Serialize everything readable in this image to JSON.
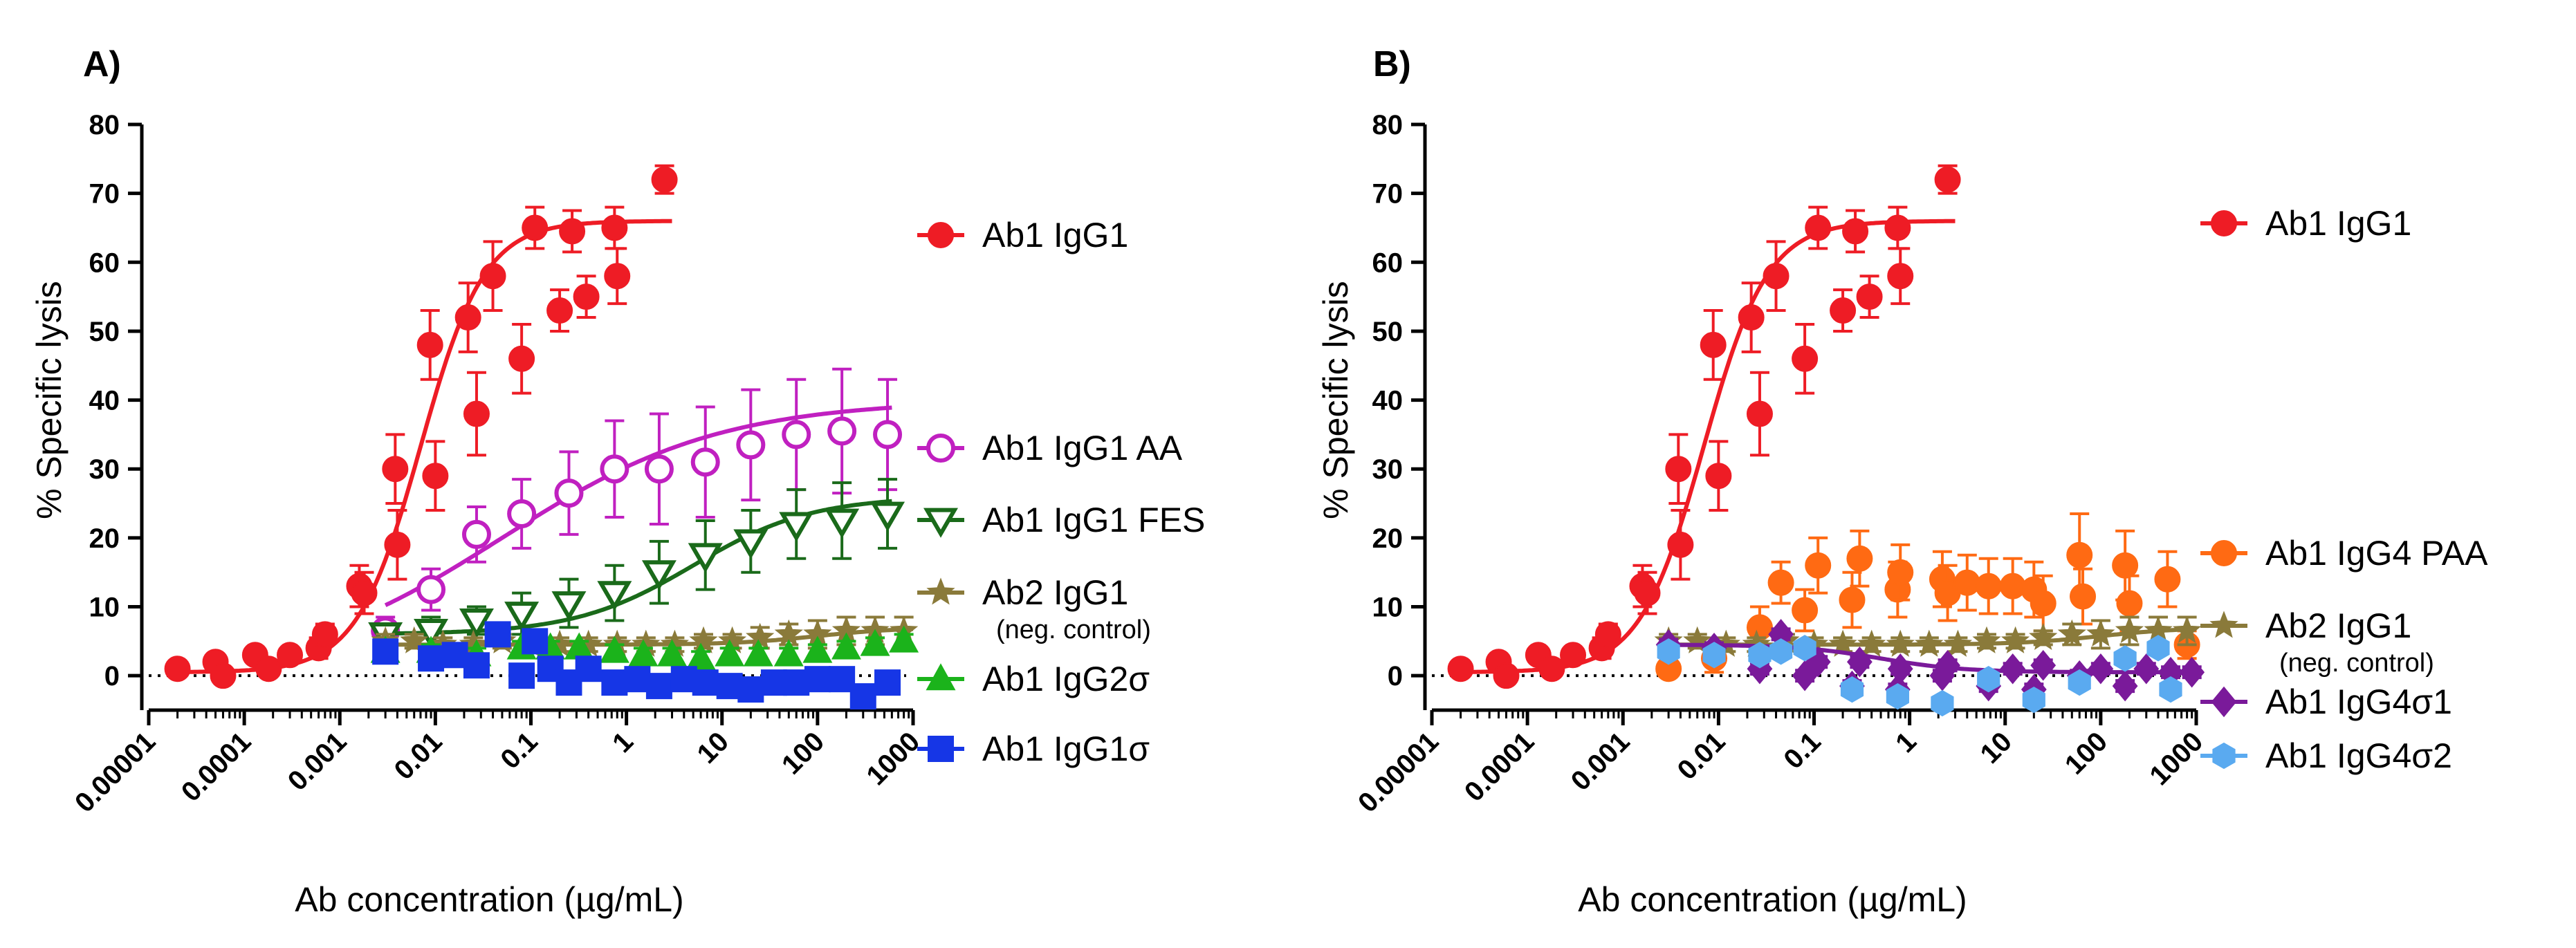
{
  "chart_data": [
    {
      "type": "scatter",
      "panel_label": "A)",
      "xlabel": "Ab concentration (µg/mL)",
      "ylabel": "% Specific lysis",
      "xscale": "log",
      "xlim": [
        1e-05,
        1000
      ],
      "ylim": [
        -5,
        80
      ],
      "x_ticks": [
        "0.00001",
        "0.0001",
        "0.001",
        "0.01",
        "0.1",
        "1",
        "10",
        "100",
        "1000"
      ],
      "y_ticks": [
        "0",
        "10",
        "20",
        "30",
        "40",
        "50",
        "60",
        "70",
        "80"
      ],
      "reference_line": {
        "y": 0,
        "style": "dotted"
      },
      "series": [
        {
          "name": "Ab1 IgG1",
          "sub": "",
          "color": "#ee1c25",
          "marker": "circle",
          "x": [
            2e-05,
            5e-05,
            6e-05,
            0.00013,
            0.00018,
            0.0003,
            0.0006,
            0.0007,
            0.0016,
            0.0018,
            0.0038,
            0.004,
            0.0088,
            0.01,
            0.022,
            0.027,
            0.04,
            0.08,
            0.11,
            0.2,
            0.27,
            0.38,
            0.75,
            0.8,
            2.5
          ],
          "y": [
            1,
            2,
            0,
            3,
            1,
            3,
            4,
            6,
            13,
            12,
            30,
            19,
            48,
            29,
            52,
            38,
            58,
            46,
            65,
            53,
            64.5,
            55,
            65,
            58,
            72
          ],
          "err": [
            1,
            1,
            1,
            1,
            1,
            1,
            1.5,
            1.5,
            3,
            3,
            5,
            5,
            5,
            5,
            5,
            6,
            5,
            5,
            3,
            3,
            3,
            3,
            3,
            4,
            2
          ],
          "fit": {
            "bottom": 0.5,
            "top": 66,
            "ec50": 0.007,
            "hill": 1.3,
            "xmin": 2e-05,
            "xmax": 3
          }
        },
        {
          "name": "Ab1 IgG1 AA",
          "sub": "",
          "color": "#c020c0",
          "marker": "open-circle",
          "x": [
            0.003,
            0.009,
            0.027,
            0.08,
            0.25,
            0.75,
            2.2,
            6.7,
            20,
            60,
            180,
            540
          ],
          "y": [
            6.5,
            12.5,
            20.5,
            23.5,
            26.5,
            30,
            30,
            31,
            33.5,
            35,
            35.5,
            35
          ],
          "err": [
            2,
            3,
            4,
            5,
            6,
            7,
            8,
            8,
            8,
            8,
            9,
            8
          ],
          "fit": {
            "bottom": 0,
            "top": 40,
            "ec50": 0.05,
            "hill": 0.38,
            "xmin": 0.003,
            "xmax": 600
          }
        },
        {
          "name": "Ab1 IgG1 FES",
          "sub": "",
          "color": "#1a6a1a",
          "marker": "open-triangle-down",
          "x": [
            0.003,
            0.009,
            0.027,
            0.08,
            0.25,
            0.75,
            2.2,
            6.7,
            20,
            60,
            180,
            540
          ],
          "y": [
            6,
            6.5,
            8,
            9,
            10.5,
            12,
            15,
            17.5,
            19.5,
            22,
            22.5,
            23.5
          ],
          "err": [
            1.5,
            2,
            2,
            3,
            3.5,
            4,
            4.5,
            5,
            4.5,
            5,
            5.5,
            5
          ],
          "fit": {
            "bottom": 6,
            "top": 26,
            "ec50": 5,
            "hill": 0.7,
            "xmin": 0.003,
            "xmax": 600
          }
        },
        {
          "name": "Ab2 IgG1",
          "sub": "(neg. control)",
          "color": "#8a7a3a",
          "marker": "star",
          "x": [
            0.003,
            0.006,
            0.012,
            0.025,
            0.05,
            0.1,
            0.2,
            0.4,
            0.8,
            1.6,
            3.2,
            6.4,
            12.8,
            25,
            50,
            100,
            200,
            400,
            800
          ],
          "y": [
            5,
            5,
            4.5,
            4.5,
            5,
            4.5,
            4.5,
            4.5,
            4.5,
            4.5,
            4.5,
            5,
            5,
            5.5,
            6,
            6,
            6.5,
            6.5,
            6.5
          ],
          "err": [
            1,
            1,
            1,
            1,
            1,
            1,
            1,
            1,
            1,
            1,
            1,
            1,
            1,
            1.5,
            1.5,
            2,
            2,
            2,
            2
          ],
          "fit": {
            "bottom": 4.5,
            "top": 7,
            "ec50": 100,
            "hill": 1,
            "xmin": 0.003,
            "xmax": 1000
          }
        },
        {
          "name": "Ab1 IgG2σ",
          "sub": "",
          "color": "#1bb31b",
          "marker": "triangle",
          "x": [
            0.003,
            0.009,
            0.027,
            0.08,
            0.16,
            0.32,
            0.75,
            1.5,
            3,
            6,
            12,
            24,
            50,
            100,
            200,
            400,
            800
          ],
          "y": [
            3.5,
            3.5,
            3,
            4,
            4,
            4,
            3.5,
            3,
            3,
            2.5,
            3,
            3,
            3,
            3.5,
            4,
            4.5,
            5
          ],
          "err": [
            1,
            1,
            1,
            1,
            1,
            1,
            1,
            1,
            1,
            1,
            1,
            1,
            1,
            1,
            1,
            1,
            1
          ],
          "fit": null
        },
        {
          "name": "Ab1 IgG1σ",
          "sub": "",
          "color": "#1636e6",
          "marker": "square",
          "x": [
            0.003,
            0.009,
            0.016,
            0.027,
            0.045,
            0.08,
            0.11,
            0.16,
            0.25,
            0.4,
            0.75,
            1.3,
            2.2,
            4,
            6.7,
            12,
            20,
            35,
            60,
            100,
            180,
            300,
            540
          ],
          "y": [
            3.5,
            2.5,
            3,
            1.5,
            6,
            0,
            5,
            1,
            -1,
            1,
            -1,
            -0.5,
            -1.5,
            -0.5,
            -1,
            -1.5,
            -2,
            -1,
            -1,
            -0.5,
            -0.5,
            -3,
            -1
          ],
          "err": [
            1,
            1,
            1,
            1,
            1,
            1,
            1,
            1,
            1,
            1,
            1,
            1,
            1,
            1,
            1,
            1,
            1,
            1,
            1,
            1,
            1,
            1,
            1
          ],
          "fit": null
        }
      ]
    },
    {
      "type": "scatter",
      "panel_label": "B)",
      "xlabel": "Ab concentration (µg/mL)",
      "ylabel": "% Specific lysis",
      "xscale": "log",
      "xlim": [
        1e-05,
        1000
      ],
      "ylim": [
        -5,
        80
      ],
      "x_ticks": [
        "0.00001",
        "0.0001",
        "0.001",
        "0.01",
        "0.1",
        "1",
        "10",
        "100",
        "1000"
      ],
      "y_ticks": [
        "0",
        "10",
        "20",
        "30",
        "40",
        "50",
        "60",
        "70",
        "80"
      ],
      "reference_line": {
        "y": 0,
        "style": "dotted"
      },
      "series": [
        {
          "name": "Ab1 IgG1",
          "sub": "",
          "color": "#ee1c25",
          "marker": "circle",
          "x": [
            2e-05,
            5e-05,
            6e-05,
            0.00013,
            0.00018,
            0.0003,
            0.0006,
            0.0007,
            0.0016,
            0.0018,
            0.0038,
            0.004,
            0.0088,
            0.01,
            0.022,
            0.027,
            0.04,
            0.08,
            0.11,
            0.2,
            0.27,
            0.38,
            0.75,
            0.8,
            2.5
          ],
          "y": [
            1,
            2,
            0,
            3,
            1,
            3,
            4,
            6,
            13,
            12,
            30,
            19,
            48,
            29,
            52,
            38,
            58,
            46,
            65,
            53,
            64.5,
            55,
            65,
            58,
            72
          ],
          "err": [
            1,
            1,
            1,
            1,
            1,
            1,
            1.5,
            1.5,
            3,
            3,
            5,
            5,
            5,
            5,
            5,
            6,
            5,
            5,
            3,
            3,
            3,
            3,
            3,
            4,
            2
          ],
          "fit": {
            "bottom": 0.5,
            "top": 66,
            "ec50": 0.007,
            "hill": 1.3,
            "xmin": 2e-05,
            "xmax": 3
          }
        },
        {
          "name": "Ab1 IgG4 PAA",
          "sub": "",
          "color": "#ff6a13",
          "marker": "circle",
          "x": [
            0.003,
            0.009,
            0.027,
            0.045,
            0.08,
            0.11,
            0.25,
            0.3,
            0.75,
            0.8,
            2.2,
            2.5,
            4,
            6.7,
            12,
            20,
            25,
            60,
            65,
            180,
            200,
            500,
            800
          ],
          "y": [
            1,
            2.5,
            7,
            13.5,
            9.5,
            16,
            11,
            17,
            12.5,
            15,
            14,
            12,
            13.5,
            13,
            13,
            12.5,
            10.5,
            17.5,
            11.5,
            16,
            10.5,
            14,
            4.5
          ],
          "err": [
            1,
            2,
            3,
            3,
            3,
            4,
            4,
            4,
            4,
            4,
            4,
            4,
            4,
            4,
            4,
            4,
            4,
            6,
            4,
            5,
            4,
            4,
            2
          ],
          "fit": null
        },
        {
          "name": "Ab2 IgG1",
          "sub": "(neg. control)",
          "color": "#8a7a3a",
          "marker": "star",
          "x": [
            0.003,
            0.006,
            0.012,
            0.025,
            0.05,
            0.1,
            0.2,
            0.4,
            0.8,
            1.6,
            3.2,
            6.4,
            12.8,
            25,
            50,
            100,
            200,
            400,
            800
          ],
          "y": [
            5,
            5,
            4.5,
            4.5,
            5,
            4.5,
            4.5,
            4.5,
            4.5,
            4.5,
            4.5,
            5,
            5,
            5.5,
            6,
            6,
            6.5,
            6.5,
            6.5
          ],
          "err": [
            1,
            1,
            1,
            1,
            1,
            1,
            1,
            1,
            1,
            1,
            1,
            1,
            1,
            1,
            1.5,
            2,
            2,
            2,
            2
          ],
          "fit": {
            "bottom": 4.5,
            "top": 7,
            "ec50": 100,
            "hill": 1,
            "xmin": 0.003,
            "xmax": 1000
          }
        },
        {
          "name": "Ab1 IgG4σ1",
          "sub": "",
          "color": "#7a1a9a",
          "marker": "diamond",
          "x": [
            0.003,
            0.009,
            0.027,
            0.045,
            0.08,
            0.11,
            0.25,
            0.3,
            0.75,
            0.8,
            2.2,
            2.5,
            6.7,
            12,
            20,
            25,
            60,
            100,
            180,
            300,
            540,
            900
          ],
          "y": [
            4.5,
            4,
            1,
            6,
            0,
            2,
            -1.5,
            2,
            -2,
            1,
            0,
            1.5,
            -1.5,
            1,
            -2,
            1.5,
            0,
            1,
            -1.5,
            1,
            0.5,
            0.5
          ],
          "err": [
            0.8,
            0.8,
            0.8,
            0.8,
            0.8,
            0.8,
            0.8,
            0.8,
            0.8,
            0.8,
            0.8,
            0.8,
            0.8,
            0.8,
            0.8,
            0.8,
            0.8,
            0.8,
            0.8,
            0.8,
            0.8,
            0.8
          ],
          "fit": {
            "bottom": 0.5,
            "top": 4.5,
            "ec50": 0.5,
            "hill": -1,
            "xmin": 0.003,
            "xmax": 1000
          }
        },
        {
          "name": "Ab1 IgG4σ2",
          "sub": "",
          "color": "#5aaaf0",
          "marker": "hexagon",
          "x": [
            0.003,
            0.009,
            0.027,
            0.045,
            0.08,
            0.25,
            0.75,
            2.2,
            6.7,
            20,
            60,
            180,
            400,
            540
          ],
          "y": [
            3.5,
            3,
            3,
            3.5,
            4,
            -2,
            -3,
            -4,
            -0.5,
            -3.5,
            -1,
            2.5,
            4,
            -2
          ],
          "err": [
            0.8,
            0.8,
            0.8,
            0.8,
            0.8,
            0.8,
            0.8,
            0.8,
            0.8,
            0.8,
            0.8,
            0.8,
            0.8,
            0.8
          ],
          "fit": null
        }
      ]
    }
  ]
}
